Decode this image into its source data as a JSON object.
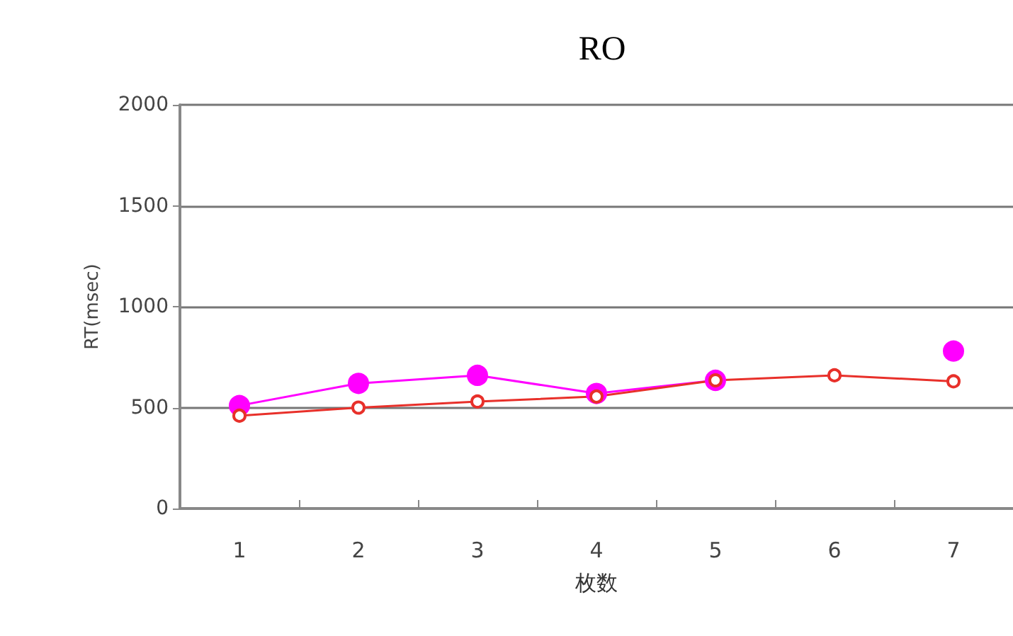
{
  "chart_data": {
    "type": "line",
    "title": "RO",
    "xlabel": "枚数",
    "ylabel": "RT(msec)",
    "categories": [
      "1",
      "2",
      "3",
      "4",
      "5",
      "6",
      "7"
    ],
    "series": [
      {
        "color": "#ff00ff",
        "values": [
          510,
          620,
          660,
          570,
          635,
          null,
          780
        ]
      },
      {
        "color": "#e8302a",
        "values": [
          460,
          500,
          530,
          555,
          635,
          660,
          630
        ]
      }
    ],
    "ylim": [
      0,
      2000
    ],
    "yticks": [
      0,
      500,
      1000,
      1500,
      2000
    ],
    "grid": "y",
    "marker": "circle",
    "line_style": "solid"
  }
}
